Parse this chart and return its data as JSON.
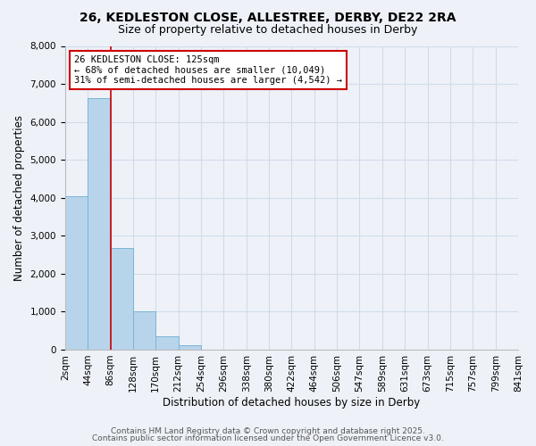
{
  "title_line1": "26, KEDLESTON CLOSE, ALLESTREE, DERBY, DE22 2RA",
  "title_line2": "Size of property relative to detached houses in Derby",
  "xlabel": "Distribution of detached houses by size in Derby",
  "ylabel": "Number of detached properties",
  "bar_values": [
    4050,
    6630,
    2680,
    1010,
    340,
    110,
    0,
    0,
    0,
    0,
    0,
    0,
    0,
    0,
    0,
    0,
    0,
    0,
    0,
    0
  ],
  "bin_labels": [
    "2sqm",
    "44sqm",
    "86sqm",
    "128sqm",
    "170sqm",
    "212sqm",
    "254sqm",
    "296sqm",
    "338sqm",
    "380sqm",
    "422sqm",
    "464sqm",
    "506sqm",
    "547sqm",
    "589sqm",
    "631sqm",
    "673sqm",
    "715sqm",
    "757sqm",
    "799sqm",
    "841sqm"
  ],
  "bar_color": "#b8d4ea",
  "bar_edge_color": "#7ab4d8",
  "grid_color": "#d0dcea",
  "background_color": "#eef2f8",
  "vline_x": 2,
  "vline_color": "#cc0000",
  "annotation_text": "26 KEDLESTON CLOSE: 125sqm\n← 68% of detached houses are smaller (10,049)\n31% of semi-detached houses are larger (4,542) →",
  "annotation_box_color": "#ffffff",
  "annotation_box_edge_color": "#cc0000",
  "ylim": [
    0,
    8000
  ],
  "yticks": [
    0,
    1000,
    2000,
    3000,
    4000,
    5000,
    6000,
    7000,
    8000
  ],
  "footer_line1": "Contains HM Land Registry data © Crown copyright and database right 2025.",
  "footer_line2": "Contains public sector information licensed under the Open Government Licence v3.0.",
  "title_fontsize": 10,
  "subtitle_fontsize": 9,
  "axis_label_fontsize": 8.5,
  "tick_fontsize": 7.5,
  "annotation_fontsize": 7.5,
  "footer_fontsize": 6.5
}
